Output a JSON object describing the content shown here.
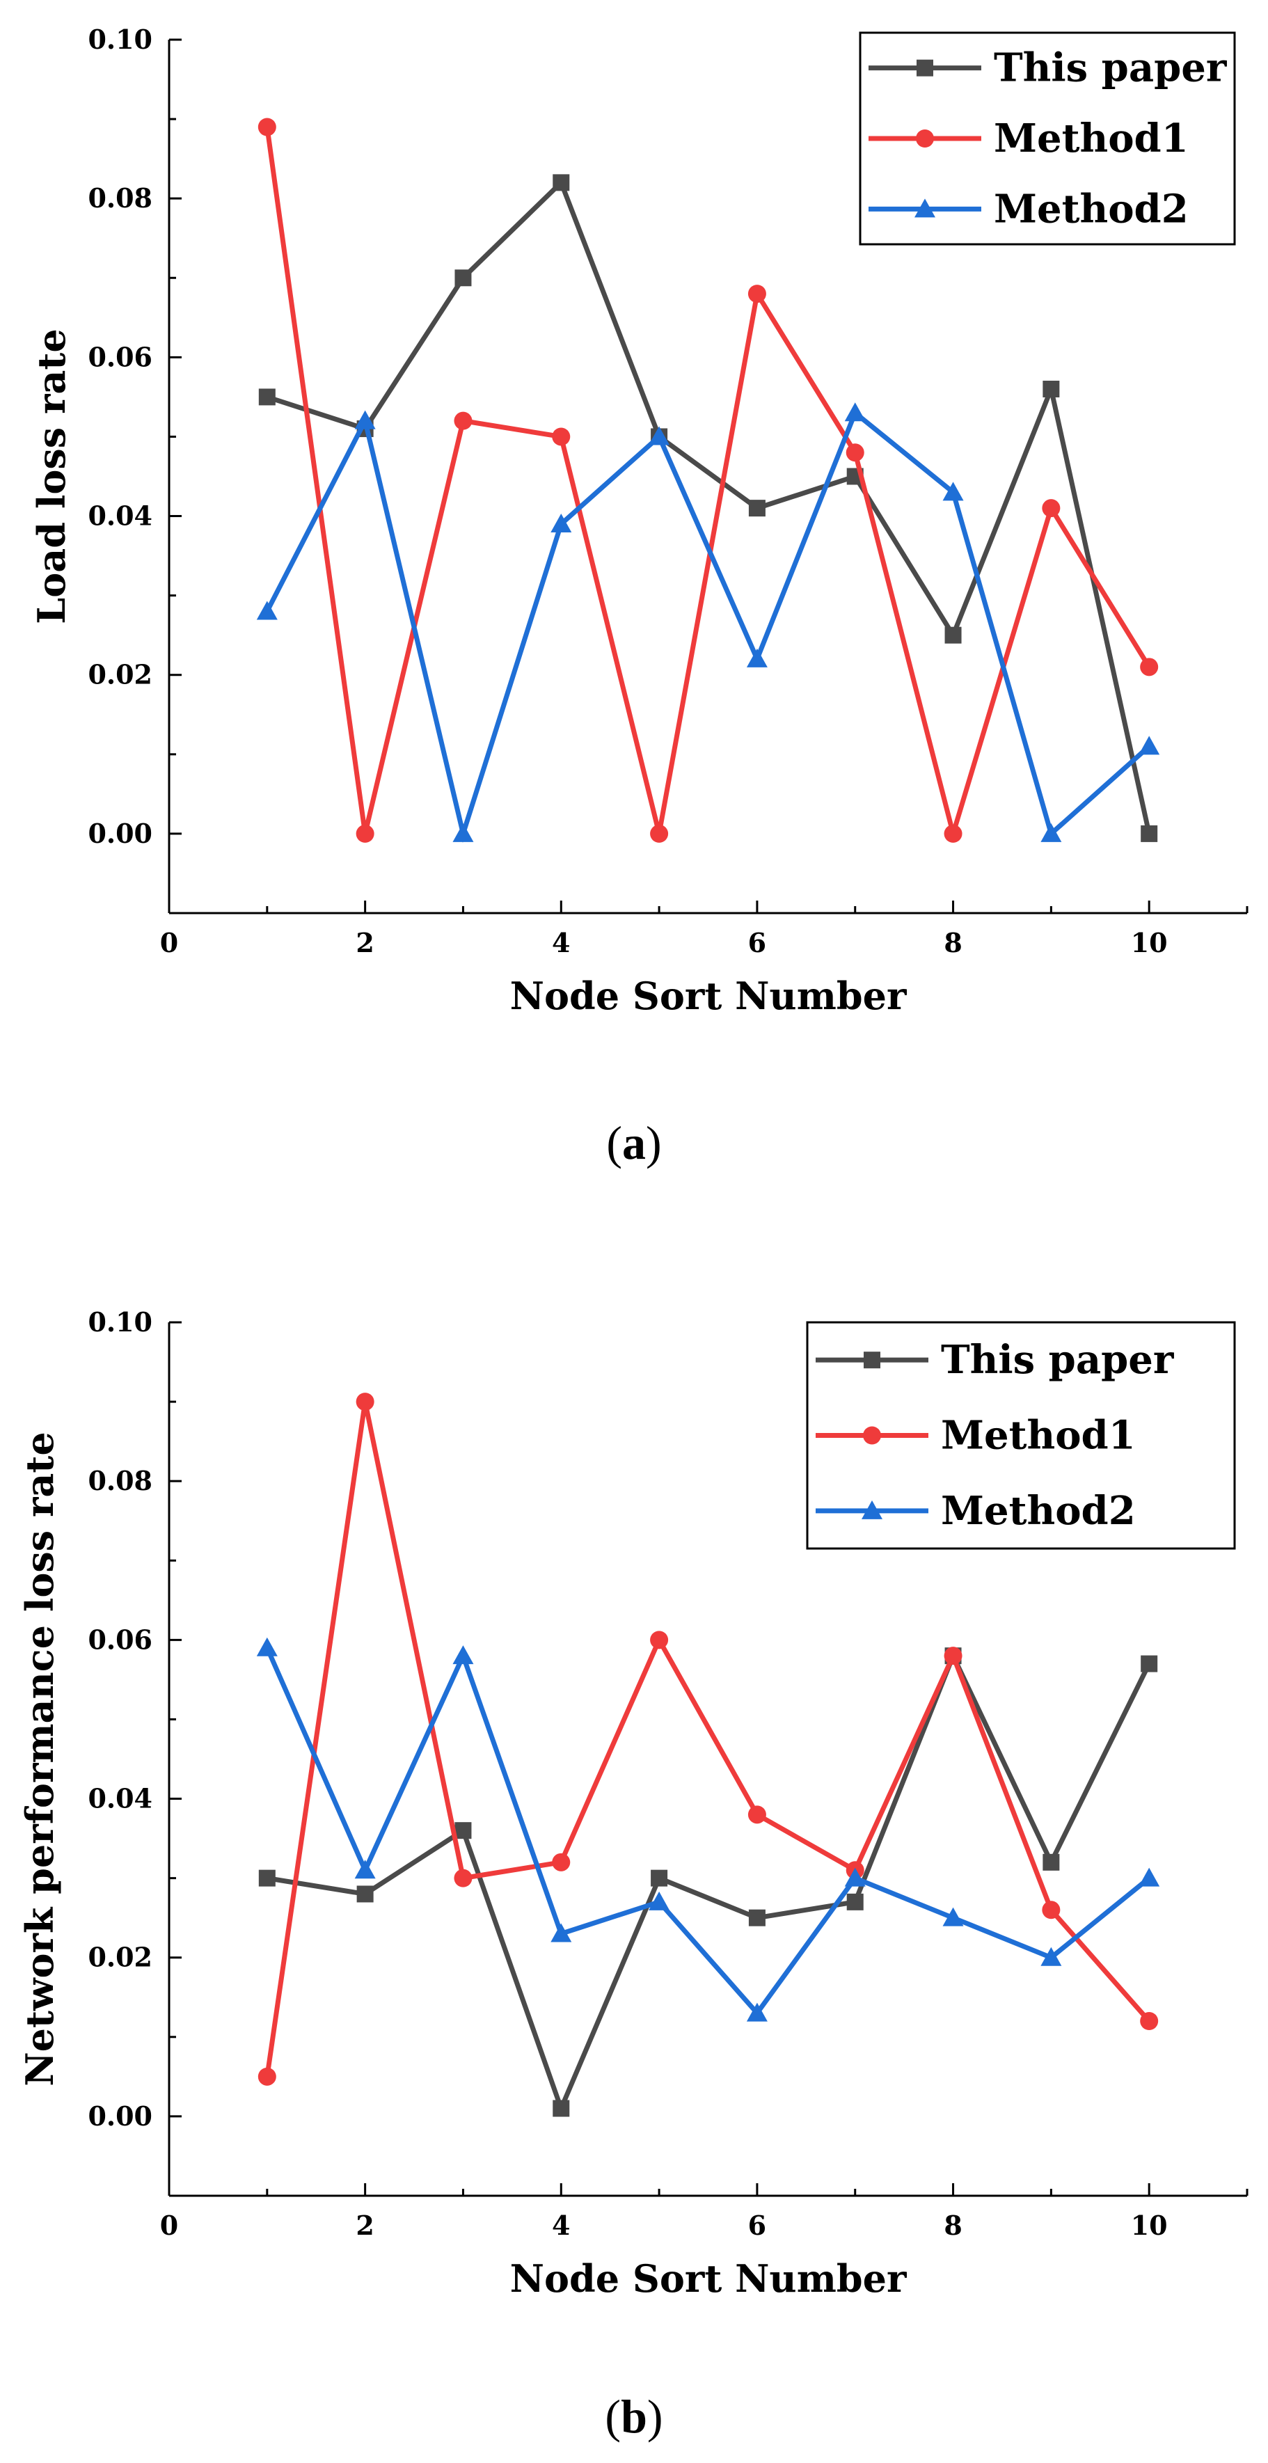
{
  "chart_data": [
    {
      "type": "line",
      "panel": "a",
      "x": [
        1,
        2,
        3,
        4,
        5,
        6,
        7,
        8,
        9,
        10
      ],
      "xlabel": "Node Sort Number",
      "ylabel": "Load loss rate",
      "xlim": [
        0,
        11
      ],
      "ylim": [
        -0.01,
        0.1
      ],
      "xticks": [
        0,
        2,
        4,
        6,
        8,
        10
      ],
      "xtick_labels": [
        "0",
        "2",
        "4",
        "6",
        "8",
        "10"
      ],
      "yticks": [
        0.0,
        0.02,
        0.04,
        0.06,
        0.08,
        0.1
      ],
      "ytick_labels": [
        "0.00",
        "0.02",
        "0.04",
        "0.06",
        "0.08",
        "0.10"
      ],
      "legend_position": "top-right",
      "series": [
        {
          "name": "This paper",
          "color": "#4a4a4a",
          "marker": "square",
          "values": [
            0.055,
            0.051,
            0.07,
            0.082,
            0.05,
            0.041,
            0.045,
            0.025,
            0.056,
            0.0
          ]
        },
        {
          "name": "Method1",
          "color": "#ef3b3b",
          "marker": "circle",
          "values": [
            0.089,
            0.0,
            0.052,
            0.05,
            0.0,
            0.068,
            0.048,
            0.0,
            0.041,
            0.021
          ]
        },
        {
          "name": "Method2",
          "color": "#1f6fd6",
          "marker": "triangle",
          "values": [
            0.028,
            0.052,
            0.0,
            0.039,
            0.05,
            0.022,
            0.053,
            0.043,
            0.0,
            0.011
          ]
        }
      ]
    },
    {
      "type": "line",
      "panel": "b",
      "x": [
        1,
        2,
        3,
        4,
        5,
        6,
        7,
        8,
        9,
        10
      ],
      "xlabel": "Node Sort Number",
      "ylabel": "Network performance loss rate",
      "xlim": [
        0,
        11
      ],
      "ylim": [
        -0.01,
        0.1
      ],
      "xticks": [
        0,
        2,
        4,
        6,
        8,
        10
      ],
      "xtick_labels": [
        "0",
        "2",
        "4",
        "6",
        "8",
        "10"
      ],
      "yticks": [
        0.0,
        0.02,
        0.04,
        0.06,
        0.08,
        0.1
      ],
      "ytick_labels": [
        "0.00",
        "0.02",
        "0.04",
        "0.06",
        "0.08",
        "0.10"
      ],
      "legend_position": "top-right",
      "series": [
        {
          "name": "This paper",
          "color": "#4a4a4a",
          "marker": "square",
          "values": [
            0.03,
            0.028,
            0.036,
            0.001,
            0.03,
            0.025,
            0.027,
            0.058,
            0.032,
            0.057
          ]
        },
        {
          "name": "Method1",
          "color": "#ef3b3b",
          "marker": "circle",
          "values": [
            0.005,
            0.09,
            0.03,
            0.032,
            0.06,
            0.038,
            0.031,
            0.058,
            0.026,
            0.012
          ]
        },
        {
          "name": "Method2",
          "color": "#1f6fd6",
          "marker": "triangle",
          "values": [
            0.059,
            0.031,
            0.058,
            0.023,
            0.027,
            0.013,
            0.03,
            0.025,
            0.02,
            0.03
          ]
        }
      ]
    }
  ],
  "captions": {
    "a": {
      "open": "(",
      "letter": "a",
      "close": ")"
    },
    "b": {
      "open": "(",
      "letter": "b",
      "close": ")"
    }
  }
}
